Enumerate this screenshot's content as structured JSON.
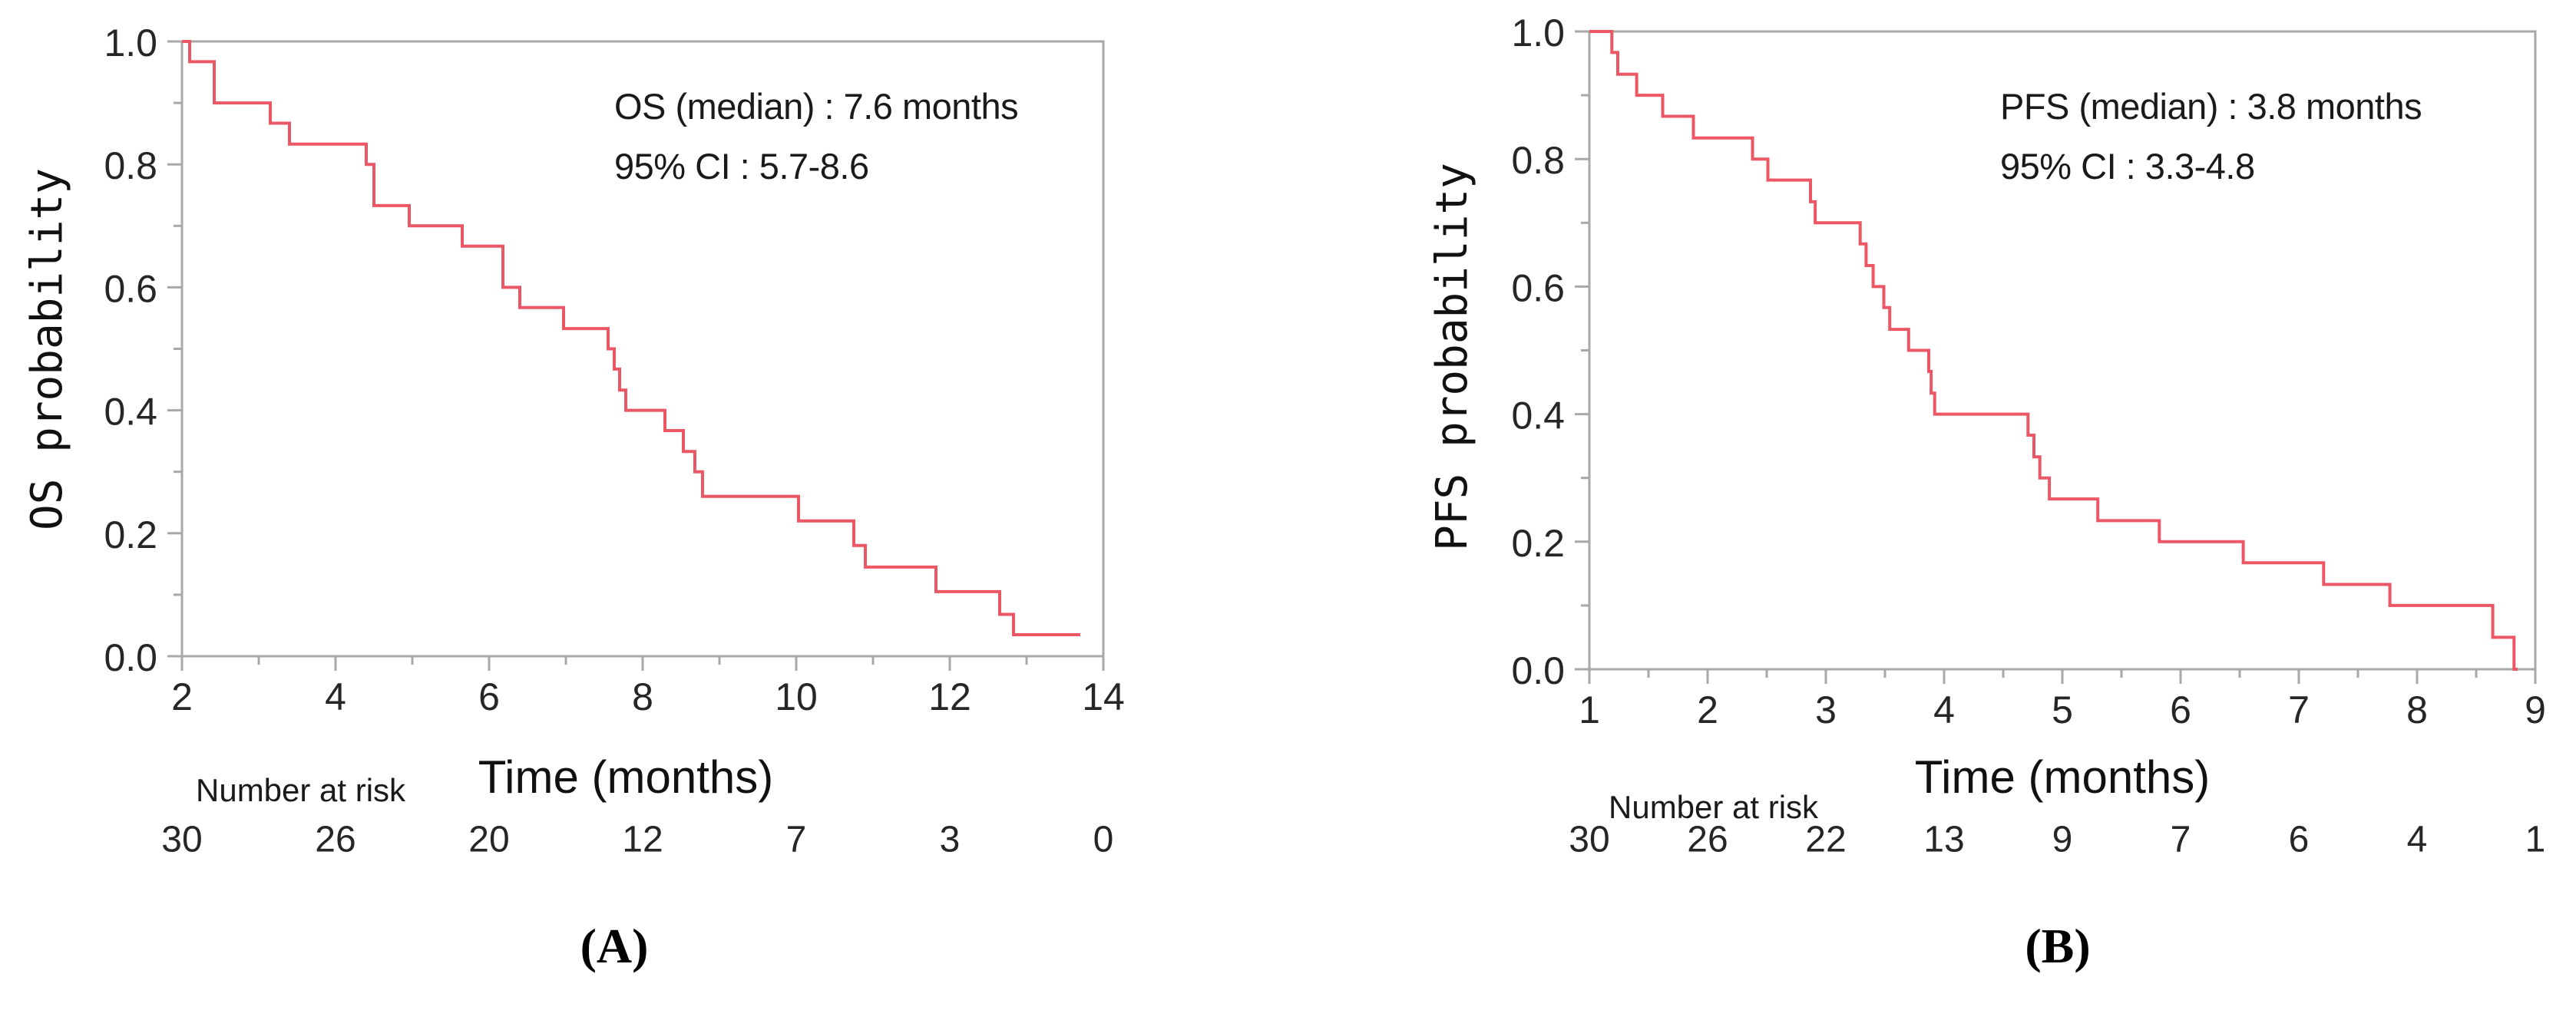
{
  "figure": {
    "background": "#ffffff",
    "curve_color": "#ec5766",
    "axis_color": "#a8a8a8",
    "tick_label_color": "#262626",
    "text_color": "#1a1a1a"
  },
  "chart_data": [
    {
      "id": "A",
      "type": "line",
      "subtype": "kaplan_meier_step",
      "panel_label": "(A)",
      "ylabel": "OS probability",
      "xlabel": "Time (months)",
      "annotation": {
        "line1": "OS (median) : 7.6 months",
        "line2": "95% CI : 5.7-8.6"
      },
      "xlim": [
        2,
        14
      ],
      "ylim": [
        0,
        1
      ],
      "x_major_ticks": [
        2,
        4,
        6,
        8,
        10,
        12,
        14
      ],
      "x_minor_ticks": [
        3,
        5,
        7,
        9,
        11,
        13
      ],
      "y_major_ticks": [
        1.0,
        0.8,
        0.6,
        0.4,
        0.2,
        0.0
      ],
      "y_major_tick_labels": [
        "1.0",
        "0.8",
        "0.6",
        "0.4",
        "0.2",
        "0.0"
      ],
      "y_minor_ticks": [
        0.9,
        0.7,
        0.5,
        0.3,
        0.1
      ],
      "grid": false,
      "legend": false,
      "series": [
        {
          "name": "OS",
          "points": [
            [
              2.0,
              1.0
            ],
            [
              2.1,
              0.967
            ],
            [
              2.42,
              0.9
            ],
            [
              3.15,
              0.867
            ],
            [
              3.4,
              0.833
            ],
            [
              4.4,
              0.8
            ],
            [
              4.5,
              0.733
            ],
            [
              4.96,
              0.7
            ],
            [
              5.65,
              0.667
            ],
            [
              6.18,
              0.6
            ],
            [
              6.4,
              0.567
            ],
            [
              6.97,
              0.533
            ],
            [
              7.55,
              0.5
            ],
            [
              7.63,
              0.467
            ],
            [
              7.7,
              0.433
            ],
            [
              7.78,
              0.4
            ],
            [
              8.29,
              0.367
            ],
            [
              8.53,
              0.333
            ],
            [
              8.68,
              0.3
            ],
            [
              8.78,
              0.26
            ],
            [
              10.03,
              0.22
            ],
            [
              10.75,
              0.18
            ],
            [
              10.9,
              0.145
            ],
            [
              11.82,
              0.105
            ],
            [
              12.65,
              0.068
            ],
            [
              12.83,
              0.035
            ],
            [
              13.7,
              0.035
            ]
          ]
        }
      ],
      "number_at_risk": {
        "label": "Number at risk",
        "times": [
          2,
          4,
          6,
          8,
          10,
          12,
          14
        ],
        "counts": [
          "30",
          "26",
          "20",
          "12",
          "7",
          "3",
          "0"
        ]
      }
    },
    {
      "id": "B",
      "type": "line",
      "subtype": "kaplan_meier_step",
      "panel_label": "(B)",
      "ylabel": "PFS probability",
      "xlabel": "Time (months)",
      "annotation": {
        "line1": "PFS (median) : 3.8 months",
        "line2": "95% CI : 3.3-4.8"
      },
      "xlim": [
        1,
        9
      ],
      "ylim": [
        0,
        1
      ],
      "x_major_ticks": [
        1,
        2,
        3,
        4,
        5,
        6,
        7,
        8,
        9
      ],
      "x_minor_ticks": [
        1.5,
        2.5,
        3.5,
        4.5,
        5.5,
        6.5,
        7.5,
        8.5
      ],
      "y_major_ticks": [
        1.0,
        0.8,
        0.6,
        0.4,
        0.2,
        0.0
      ],
      "y_major_tick_labels": [
        "1.0",
        "0.8",
        "0.6",
        "0.4",
        "0.2",
        "0.0"
      ],
      "y_minor_ticks": [
        0.9,
        0.7,
        0.5,
        0.3,
        0.1
      ],
      "grid": false,
      "legend": false,
      "series": [
        {
          "name": "PFS",
          "points": [
            [
              1.0,
              1.0
            ],
            [
              1.19,
              0.967
            ],
            [
              1.24,
              0.933
            ],
            [
              1.4,
              0.9
            ],
            [
              1.62,
              0.867
            ],
            [
              1.88,
              0.833
            ],
            [
              2.38,
              0.8
            ],
            [
              2.51,
              0.767
            ],
            [
              2.87,
              0.733
            ],
            [
              2.91,
              0.7
            ],
            [
              3.29,
              0.667
            ],
            [
              3.34,
              0.633
            ],
            [
              3.4,
              0.6
            ],
            [
              3.49,
              0.567
            ],
            [
              3.54,
              0.533
            ],
            [
              3.7,
              0.5
            ],
            [
              3.87,
              0.467
            ],
            [
              3.89,
              0.433
            ],
            [
              3.92,
              0.4
            ],
            [
              4.71,
              0.367
            ],
            [
              4.76,
              0.333
            ],
            [
              4.81,
              0.3
            ],
            [
              4.89,
              0.267
            ],
            [
              5.3,
              0.233
            ],
            [
              5.82,
              0.2
            ],
            [
              6.53,
              0.167
            ],
            [
              7.21,
              0.133
            ],
            [
              7.77,
              0.1
            ],
            [
              8.64,
              0.05
            ],
            [
              8.82,
              0.0
            ],
            [
              8.85,
              0.0
            ]
          ]
        }
      ],
      "number_at_risk": {
        "label": "Number at risk",
        "times": [
          1,
          2,
          3,
          4,
          5,
          6,
          7,
          8,
          9
        ],
        "counts": [
          "30",
          "26",
          "22",
          "13",
          "9",
          "7",
          "6",
          "4",
          "1"
        ]
      }
    }
  ]
}
